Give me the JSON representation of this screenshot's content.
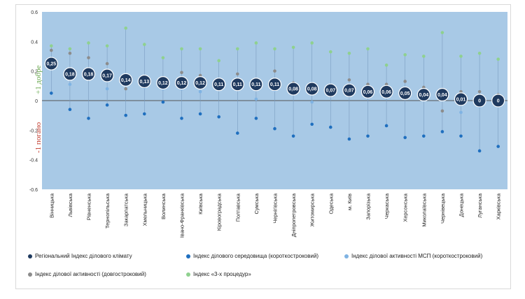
{
  "labels": {
    "good": "+1 добре",
    "bad": "-1 погано"
  },
  "colors": {
    "plot_bg": "#a8c9e6",
    "regional": "#1f3a5f",
    "environment": "#1f6fbf",
    "sme_short": "#7fb3e3",
    "long_term": "#8c8c8c",
    "three_proc": "#8fd18f"
  },
  "chart_data": {
    "type": "scatter",
    "ylim": [
      -0.6,
      0.6
    ],
    "yticks": [
      -0.6,
      -0.4,
      -0.2,
      0,
      0.2,
      0.4,
      0.6
    ],
    "ytick_labels": [
      "-0.6",
      "-0.4",
      "-0.2",
      "0",
      "0.2",
      "0.4",
      "0.6"
    ],
    "categories": [
      "Вінницька",
      "Львівська",
      "Рівненська",
      "Тернопільська",
      "Закарпатська",
      "Хмельницька",
      "Волинська",
      "Івано-Франківська",
      "Київська",
      "Кіровоградська",
      "Полтавська",
      "Сумська",
      "Чернігівська",
      "Дніпропетровська",
      "Житомирська",
      "Одеська",
      "м. Київ",
      "Запорізька",
      "Черкаська",
      "Херсонська",
      "Миколаївська",
      "Чернівецька",
      "Донецька",
      "Луганська",
      "Харківська"
    ],
    "series": [
      {
        "name": "Регіональний Індекс ділового  клімату",
        "color_key": "regional",
        "values": [
          0.25,
          0.18,
          0.18,
          0.17,
          0.14,
          0.13,
          0.12,
          0.12,
          0.12,
          0.11,
          0.11,
          0.11,
          0.11,
          0.08,
          0.08,
          0.07,
          0.07,
          0.06,
          0.06,
          0.05,
          0.04,
          0.04,
          0.01,
          0,
          0
        ],
        "data_labels": [
          "0,25",
          "0,18",
          "0,18",
          "0,17",
          "0,14",
          "0,13",
          "0,12",
          "0,12",
          "0,12",
          "0,11",
          "0,11",
          "0,11",
          "0,11",
          "0,08",
          "0,08",
          "0,07",
          "0,07",
          "0,06",
          "0,06",
          "0,05",
          "0,04",
          "0,04",
          "0,01",
          "0",
          "0"
        ]
      },
      {
        "name": "Індекс ділового середовища (короткостроковий)",
        "color_key": "environment",
        "values": [
          0.05,
          -0.06,
          -0.12,
          -0.03,
          -0.1,
          -0.09,
          -0.01,
          -0.12,
          -0.09,
          -0.11,
          -0.22,
          -0.12,
          -0.19,
          -0.24,
          -0.16,
          -0.18,
          -0.26,
          -0.24,
          -0.17,
          -0.25,
          -0.24,
          -0.21,
          -0.24,
          -0.34,
          -0.31
        ]
      },
      {
        "name": "Індекс ділової активності МСП (короткостроковий)",
        "color_key": "sme_short",
        "values": [
          0.22,
          0.11,
          0.15,
          0.08,
          0.12,
          0.09,
          0.08,
          0.08,
          0.06,
          0.11,
          0.11,
          0.01,
          0.07,
          0.08,
          -0.01,
          0.07,
          0.06,
          0.05,
          0.04,
          0.04,
          0.02,
          0.02,
          -0.08,
          -0.04,
          -0.02
        ]
      },
      {
        "name": "Індекс ділової активності (довгостроковий)",
        "color_key": "long_term",
        "values": [
          0.34,
          0.32,
          0.29,
          0.25,
          0.08,
          0.14,
          0.12,
          0.19,
          0.17,
          0.11,
          0.18,
          0.14,
          0.2,
          0.12,
          0.11,
          0.07,
          0.14,
          0.11,
          0.11,
          0.13,
          0.09,
          -0.07,
          0.06,
          0.06,
          0.04
        ]
      },
      {
        "name": "Індекс «3-х процедур»",
        "color_key": "three_proc",
        "values": [
          0.37,
          0.35,
          0.39,
          0.37,
          0.49,
          0.38,
          0.29,
          0.35,
          0.35,
          0.27,
          0.35,
          0.39,
          0.35,
          0.36,
          0.39,
          0.33,
          0.32,
          0.35,
          0.24,
          0.31,
          0.3,
          0.46,
          0.3,
          0.32,
          0.28
        ]
      }
    ]
  }
}
